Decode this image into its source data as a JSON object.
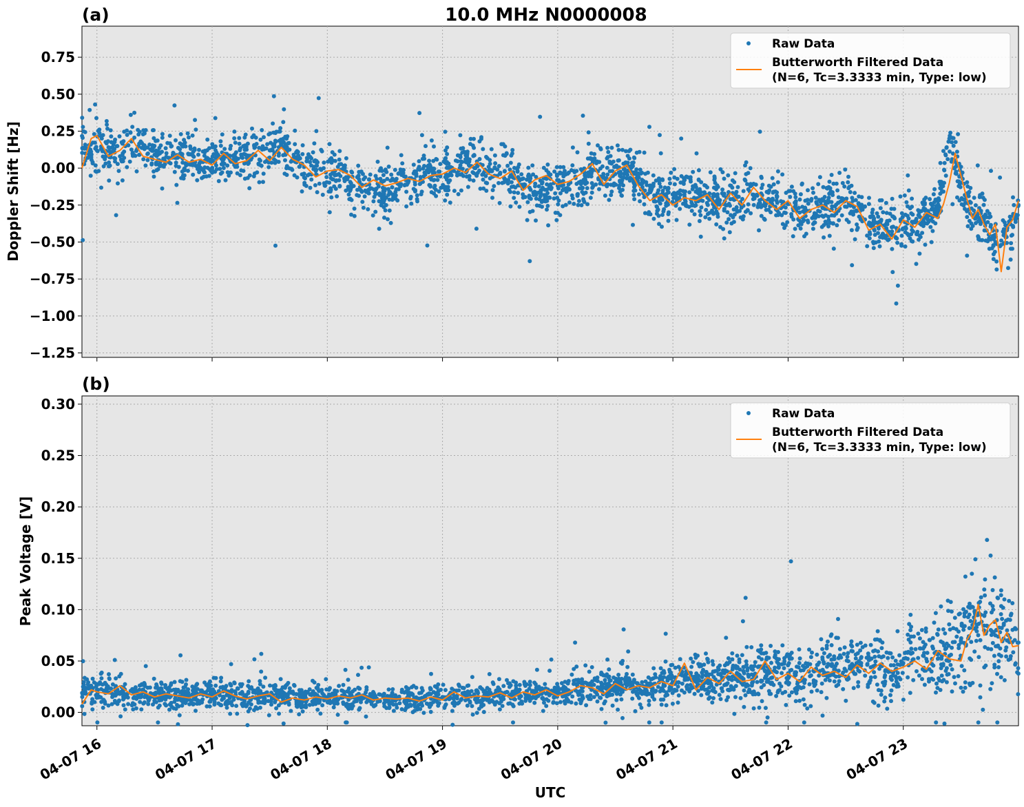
{
  "figure": {
    "title": "10.0 MHz N0000008",
    "xlabel": "UTC"
  },
  "chart_data": [
    {
      "type": "scatter",
      "panel_label": "(a)",
      "ylabel": "Doppler Shift [Hz]",
      "x_unit": "hours UTC on 04-07",
      "xlim": [
        15.87,
        24.0
      ],
      "ylim": [
        -1.28,
        0.96
      ],
      "x_ticks": [
        16,
        17,
        18,
        19,
        20,
        21,
        22,
        23
      ],
      "x_tick_labels": [
        "04-07 16",
        "04-07 17",
        "04-07 18",
        "04-07 19",
        "04-07 20",
        "04-07 21",
        "04-07 22",
        "04-07 23"
      ],
      "y_ticks": [
        -1.25,
        -1.0,
        -0.75,
        -0.5,
        -0.25,
        0.0,
        0.25,
        0.5,
        0.75
      ],
      "y_tick_labels": [
        "−1.25",
        "−1.00",
        "−0.75",
        "−0.50",
        "−0.25",
        "0.00",
        "0.25",
        "0.50",
        "0.75"
      ],
      "grid": true,
      "legend_position": "top-right",
      "legend": [
        "Raw Data",
        "Butterworth Filtered Data",
        "(N=6, Tc=3.3333 min, Type: low)"
      ],
      "series": [
        {
          "name": "Raw Data",
          "kind": "points",
          "color": "#1f77b4",
          "x": [
            15.9,
            16.0,
            16.2,
            16.3,
            16.5,
            16.7,
            16.9,
            17.1,
            17.3,
            17.5,
            17.6,
            17.7,
            17.9,
            18.1,
            18.3,
            18.5,
            18.7,
            18.9,
            19.1,
            19.2,
            19.3,
            19.5,
            19.7,
            19.8,
            20.0,
            20.2,
            20.3,
            20.5,
            20.6,
            20.8,
            20.9,
            21.1,
            21.3,
            21.5,
            21.7,
            21.9,
            22.1,
            22.3,
            22.5,
            22.7,
            22.9,
            23.1,
            23.3,
            23.4,
            23.5,
            23.6,
            23.7,
            23.8,
            23.9,
            24.0
          ],
          "y": [
            0.1,
            0.12,
            0.08,
            0.18,
            0.09,
            0.07,
            0.05,
            0.06,
            0.07,
            0.12,
            0.18,
            0.05,
            -0.02,
            -0.04,
            -0.12,
            -0.14,
            -0.1,
            -0.06,
            -0.02,
            0.06,
            0.02,
            -0.04,
            -0.07,
            -0.16,
            -0.12,
            -0.09,
            -0.01,
            -0.04,
            0.02,
            -0.15,
            -0.2,
            -0.18,
            -0.2,
            -0.21,
            -0.18,
            -0.22,
            -0.3,
            -0.27,
            -0.22,
            -0.38,
            -0.4,
            -0.36,
            -0.28,
            0.2,
            -0.1,
            -0.32,
            -0.35,
            -0.5,
            -0.42,
            -0.25
          ]
        },
        {
          "name": "Butterworth Filtered Data",
          "kind": "line",
          "color": "#ff7f0e",
          "x": [
            15.87,
            15.95,
            16.0,
            16.1,
            16.2,
            16.3,
            16.4,
            16.5,
            16.6,
            16.7,
            16.8,
            16.9,
            17.0,
            17.1,
            17.2,
            17.3,
            17.4,
            17.5,
            17.6,
            17.7,
            17.8,
            17.9,
            18.0,
            18.1,
            18.2,
            18.3,
            18.4,
            18.5,
            18.6,
            18.7,
            18.8,
            18.9,
            19.0,
            19.1,
            19.2,
            19.3,
            19.4,
            19.5,
            19.6,
            19.7,
            19.8,
            19.9,
            20.0,
            20.1,
            20.2,
            20.3,
            20.4,
            20.5,
            20.6,
            20.7,
            20.8,
            20.9,
            21.0,
            21.1,
            21.2,
            21.3,
            21.4,
            21.5,
            21.6,
            21.7,
            21.8,
            21.9,
            22.0,
            22.1,
            22.2,
            22.3,
            22.4,
            22.5,
            22.6,
            22.7,
            22.8,
            22.9,
            23.0,
            23.1,
            23.2,
            23.3,
            23.35,
            23.4,
            23.45,
            23.5,
            23.55,
            23.6,
            23.65,
            23.7,
            23.75,
            23.8,
            23.85,
            23.9,
            23.95,
            24.0
          ],
          "y": [
            0.0,
            0.2,
            0.22,
            0.08,
            0.12,
            0.2,
            0.08,
            0.06,
            0.04,
            0.09,
            0.04,
            0.06,
            0.02,
            0.1,
            0.03,
            0.05,
            0.12,
            0.05,
            0.14,
            0.06,
            0.02,
            -0.06,
            -0.02,
            -0.01,
            -0.05,
            -0.13,
            -0.08,
            -0.12,
            -0.1,
            -0.07,
            -0.09,
            -0.05,
            -0.04,
            0.0,
            -0.03,
            0.04,
            -0.04,
            -0.07,
            -0.02,
            -0.15,
            -0.08,
            -0.05,
            -0.11,
            -0.09,
            -0.04,
            0.03,
            -0.11,
            -0.02,
            0.02,
            -0.12,
            -0.22,
            -0.18,
            -0.25,
            -0.2,
            -0.22,
            -0.18,
            -0.28,
            -0.17,
            -0.25,
            -0.13,
            -0.22,
            -0.28,
            -0.22,
            -0.34,
            -0.28,
            -0.25,
            -0.3,
            -0.22,
            -0.26,
            -0.42,
            -0.38,
            -0.48,
            -0.35,
            -0.4,
            -0.3,
            -0.34,
            -0.24,
            -0.1,
            0.1,
            -0.05,
            -0.2,
            -0.34,
            -0.28,
            -0.38,
            -0.45,
            -0.38,
            -0.7,
            -0.4,
            -0.35,
            -0.22
          ]
        }
      ]
    },
    {
      "type": "scatter",
      "panel_label": "(b)",
      "ylabel": "Peak Voltage [V]",
      "x_unit": "hours UTC on 04-07",
      "xlim": [
        15.87,
        24.0
      ],
      "ylim": [
        -0.013,
        0.308
      ],
      "x_ticks": [
        16,
        17,
        18,
        19,
        20,
        21,
        22,
        23
      ],
      "x_tick_labels": [
        "04-07 16",
        "04-07 17",
        "04-07 18",
        "04-07 19",
        "04-07 20",
        "04-07 21",
        "04-07 22",
        "04-07 23"
      ],
      "y_ticks": [
        0.0,
        0.05,
        0.1,
        0.15,
        0.2,
        0.25,
        0.3
      ],
      "y_tick_labels": [
        "0.00",
        "0.05",
        "0.10",
        "0.15",
        "0.20",
        "0.25",
        "0.30"
      ],
      "grid": true,
      "legend_position": "top-right",
      "legend": [
        "Raw Data",
        "Butterworth Filtered Data",
        "(N=6, Tc=3.3333 min, Type: low)"
      ],
      "series": [
        {
          "name": "Raw Data",
          "kind": "points",
          "color": "#1f77b4",
          "x": [
            15.9,
            16.0,
            16.2,
            16.4,
            16.6,
            16.8,
            17.0,
            17.2,
            17.4,
            17.6,
            17.8,
            18.0,
            18.2,
            18.4,
            18.6,
            18.8,
            19.0,
            19.2,
            19.4,
            19.6,
            19.8,
            20.0,
            20.2,
            20.4,
            20.6,
            20.8,
            21.0,
            21.2,
            21.4,
            21.6,
            21.8,
            22.0,
            22.2,
            22.4,
            22.6,
            22.8,
            23.0,
            23.2,
            23.4,
            23.5,
            23.6,
            23.7,
            23.8,
            23.9,
            24.0
          ],
          "y": [
            0.02,
            0.022,
            0.018,
            0.02,
            0.017,
            0.016,
            0.018,
            0.016,
            0.015,
            0.017,
            0.013,
            0.014,
            0.015,
            0.013,
            0.014,
            0.013,
            0.015,
            0.016,
            0.015,
            0.017,
            0.019,
            0.018,
            0.021,
            0.024,
            0.026,
            0.025,
            0.028,
            0.032,
            0.03,
            0.034,
            0.04,
            0.038,
            0.036,
            0.042,
            0.044,
            0.046,
            0.048,
            0.052,
            0.055,
            0.07,
            0.085,
            0.08,
            0.075,
            0.07,
            0.068
          ]
        },
        {
          "name": "Butterworth Filtered Data",
          "kind": "line",
          "color": "#ff7f0e",
          "x": [
            15.87,
            15.95,
            16.0,
            16.1,
            16.2,
            16.3,
            16.4,
            16.5,
            16.6,
            16.7,
            16.8,
            16.9,
            17.0,
            17.1,
            17.2,
            17.3,
            17.4,
            17.5,
            17.6,
            17.7,
            17.8,
            17.9,
            18.0,
            18.1,
            18.2,
            18.3,
            18.4,
            18.5,
            18.6,
            18.7,
            18.8,
            18.9,
            19.0,
            19.1,
            19.2,
            19.3,
            19.4,
            19.5,
            19.6,
            19.7,
            19.8,
            19.9,
            20.0,
            20.1,
            20.2,
            20.3,
            20.4,
            20.5,
            20.6,
            20.7,
            20.8,
            20.9,
            21.0,
            21.1,
            21.2,
            21.3,
            21.4,
            21.5,
            21.6,
            21.7,
            21.8,
            21.9,
            22.0,
            22.1,
            22.2,
            22.3,
            22.4,
            22.5,
            22.6,
            22.7,
            22.8,
            22.9,
            23.0,
            23.1,
            23.2,
            23.3,
            23.4,
            23.5,
            23.55,
            23.6,
            23.65,
            23.7,
            23.75,
            23.8,
            23.85,
            23.9,
            23.95,
            24.0
          ],
          "y": [
            0.008,
            0.022,
            0.02,
            0.018,
            0.026,
            0.017,
            0.02,
            0.015,
            0.018,
            0.016,
            0.014,
            0.018,
            0.015,
            0.021,
            0.016,
            0.013,
            0.016,
            0.018,
            0.01,
            0.014,
            0.012,
            0.015,
            0.013,
            0.016,
            0.014,
            0.017,
            0.012,
            0.014,
            0.013,
            0.014,
            0.011,
            0.015,
            0.012,
            0.02,
            0.014,
            0.016,
            0.015,
            0.019,
            0.014,
            0.02,
            0.017,
            0.022,
            0.016,
            0.02,
            0.026,
            0.024,
            0.018,
            0.028,
            0.022,
            0.026,
            0.024,
            0.03,
            0.026,
            0.048,
            0.022,
            0.034,
            0.028,
            0.04,
            0.03,
            0.032,
            0.05,
            0.032,
            0.038,
            0.03,
            0.044,
            0.036,
            0.04,
            0.034,
            0.046,
            0.038,
            0.048,
            0.04,
            0.044,
            0.05,
            0.042,
            0.06,
            0.052,
            0.05,
            0.07,
            0.08,
            0.105,
            0.075,
            0.085,
            0.09,
            0.068,
            0.078,
            0.064,
            0.065
          ]
        }
      ]
    }
  ]
}
